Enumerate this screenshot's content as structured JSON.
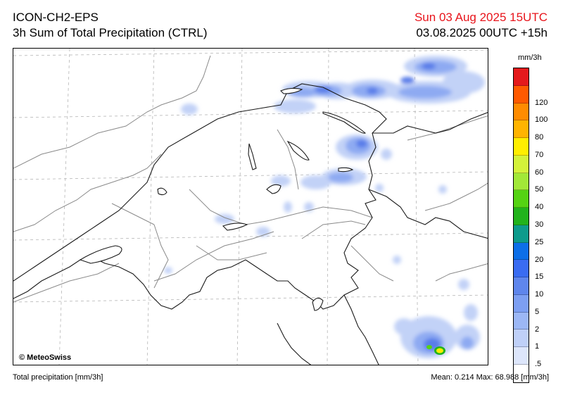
{
  "header": {
    "model": "ICON-CH2-EPS",
    "product": "3h Sum of Total Precipitation (CTRL)",
    "valid_time": "Sun 03 Aug 2025 15UTC",
    "run_info": "03.08.2025 00UTC +15h"
  },
  "map": {
    "copyright": "© MeteoSwiss"
  },
  "legend": {
    "unit": "mm/3h",
    "classes": [
      {
        "label": "",
        "color": "#e41a1c"
      },
      {
        "label": "120",
        "color": "#ff5a00"
      },
      {
        "label": "100",
        "color": "#ff8c00"
      },
      {
        "label": "80",
        "color": "#ffb400"
      },
      {
        "label": "70",
        "color": "#ffee00"
      },
      {
        "label": "60",
        "color": "#d4f23a"
      },
      {
        "label": "50",
        "color": "#a2e838"
      },
      {
        "label": "40",
        "color": "#55d313"
      },
      {
        "label": "30",
        "color": "#22b31c"
      },
      {
        "label": "25",
        "color": "#0e9b8c"
      },
      {
        "label": "20",
        "color": "#0d6fe8"
      },
      {
        "label": "15",
        "color": "#3a6cf2"
      },
      {
        "label": "10",
        "color": "#5f86ec"
      },
      {
        "label": "5",
        "color": "#7d9ff2"
      },
      {
        "label": "2",
        "color": "#9cb7f5"
      },
      {
        "label": "1",
        "color": "#bfd0f8"
      },
      {
        "label": ".5",
        "color": "#dde6fb"
      },
      {
        "label": "",
        "color": "#ffffff"
      }
    ]
  },
  "footer": {
    "variable": "Total precipitation [mm/3h]",
    "mean_label": "Mean:",
    "mean_value": "0.214",
    "max_label": "Max:",
    "max_value": "68.988",
    "max_unit": "[mm/3h]"
  }
}
